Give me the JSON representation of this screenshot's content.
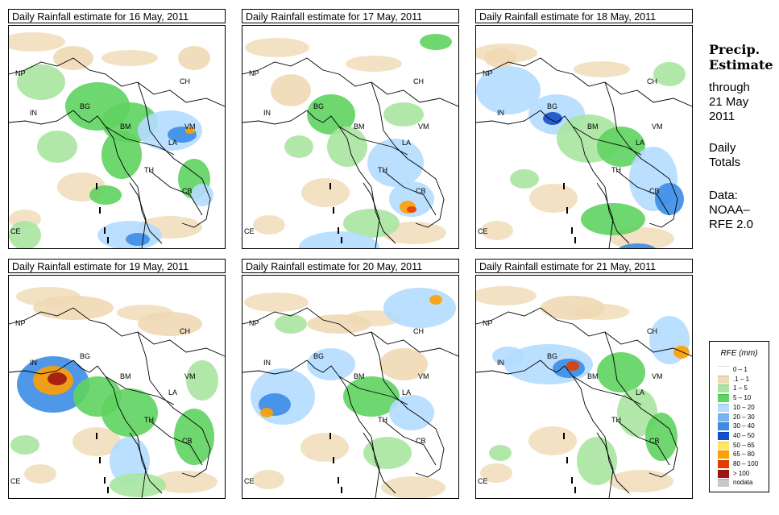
{
  "panels": [
    {
      "title": "Daily Rainfall estimate for  16 May, 2011"
    },
    {
      "title": "Daily Rainfall estimate for  17 May, 2011"
    },
    {
      "title": "Daily Rainfall estimate for  18 May, 2011"
    },
    {
      "title": "Daily Rainfall estimate for  19 May, 2011"
    },
    {
      "title": "Daily Rainfall estimate for  20 May, 2011"
    },
    {
      "title": "Daily Rainfall estimate for  21 May, 2011"
    }
  ],
  "country_labels": {
    "np": "NP",
    "in": "IN",
    "bg": "BG",
    "ch": "CH",
    "bm": "BM",
    "vm": "VM",
    "la": "LA",
    "th": "TH",
    "cb": "CB",
    "ce": "CE"
  },
  "side": {
    "heading_1": "Precip.",
    "heading_2": "Estimate",
    "line_1": "through",
    "line_2": "21 May",
    "line_3": "2011",
    "line_4": "Daily",
    "line_5": "Totals",
    "line_6": "Data:",
    "line_7": "NOAA–",
    "line_8": "RFE 2.0"
  },
  "legend": {
    "title": "RFE (mm)",
    "items": [
      {
        "label": "0 – 1",
        "color": "#ffffff"
      },
      {
        "label": ".1 – 1",
        "color": "#f0d9b5"
      },
      {
        "label": "1 – 5",
        "color": "#a8e6a0"
      },
      {
        "label": "5 – 10",
        "color": "#5fd35f"
      },
      {
        "label": "10 – 20",
        "color": "#b4dcff"
      },
      {
        "label": "20 – 30",
        "color": "#78b4f0"
      },
      {
        "label": "30 – 40",
        "color": "#3c8ce6"
      },
      {
        "label": "40 – 50",
        "color": "#1450c8"
      },
      {
        "label": "50 – 65",
        "color": "#ffe664"
      },
      {
        "label": "65 – 80",
        "color": "#ffa000"
      },
      {
        "label": "80 – 100",
        "color": "#e63c00"
      },
      {
        "label": "> 100",
        "color": "#a01414"
      },
      {
        "label": "nodata",
        "color": "#c8c8c8"
      }
    ]
  }
}
